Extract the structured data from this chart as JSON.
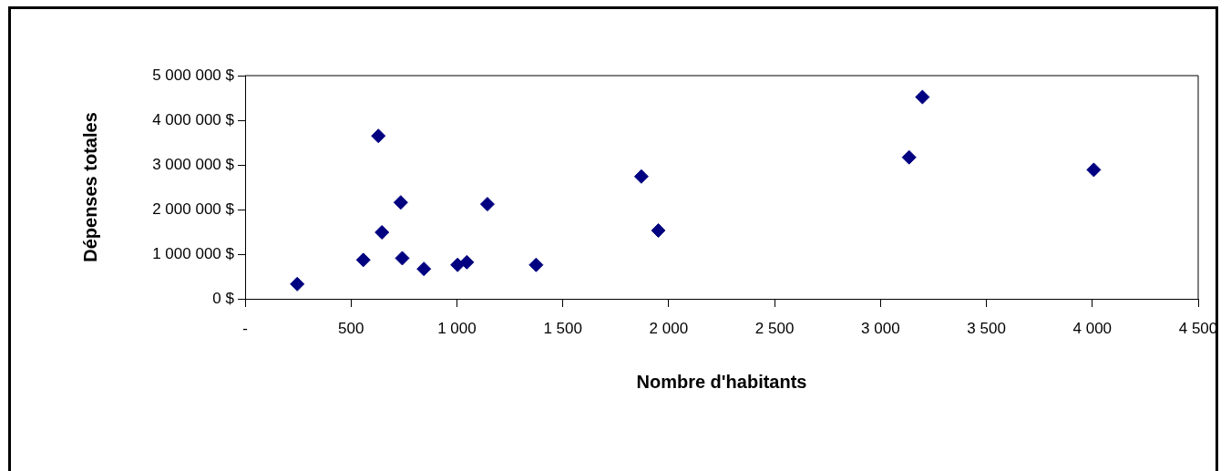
{
  "chart_data": {
    "type": "scatter",
    "xlabel": "Nombre d'habitants",
    "ylabel": "Dépenses totales",
    "series": [
      {
        "color": "#000080",
        "x": [
          246,
          558,
          629,
          646,
          735,
          742,
          844,
          1003,
          1047,
          1144,
          1374,
          1871,
          1951,
          3135,
          3198,
          4007
        ],
        "values": [
          330000,
          870000,
          3650000,
          1490000,
          2160000,
          910000,
          670000,
          760000,
          820000,
          2120000,
          760000,
          2740000,
          1530000,
          3170000,
          4520000,
          2890000
        ]
      }
    ],
    "xlim": [
      0,
      4500
    ],
    "xticks": [
      {
        "value": 0,
        "label": "-"
      },
      500,
      {
        "value": 1000,
        "label": "1 000"
      },
      {
        "value": 1500,
        "label": "1 500"
      },
      {
        "value": 2000,
        "label": "2 000"
      },
      {
        "value": 2500,
        "label": "2 500"
      },
      {
        "value": 3000,
        "label": "3 000"
      },
      {
        "value": 3500,
        "label": "3 500"
      },
      {
        "value": 4000,
        "label": "4 000"
      },
      {
        "value": 4500,
        "label": "4 500"
      }
    ],
    "ylim": [
      0,
      5000000
    ],
    "yticks": [
      {
        "value": 0,
        "label": "0 $"
      },
      {
        "value": 1000000,
        "label": "1 000 000 $"
      },
      {
        "value": 2000000,
        "label": "2 000 000 $"
      },
      {
        "value": 3000000,
        "label": "3 000 000 $"
      },
      {
        "value": 4000000,
        "label": "4 000 000 $"
      },
      {
        "value": 5000000,
        "label": "5 000 000 $"
      }
    ],
    "grid": false,
    "legend": false,
    "marker": "diamond"
  }
}
